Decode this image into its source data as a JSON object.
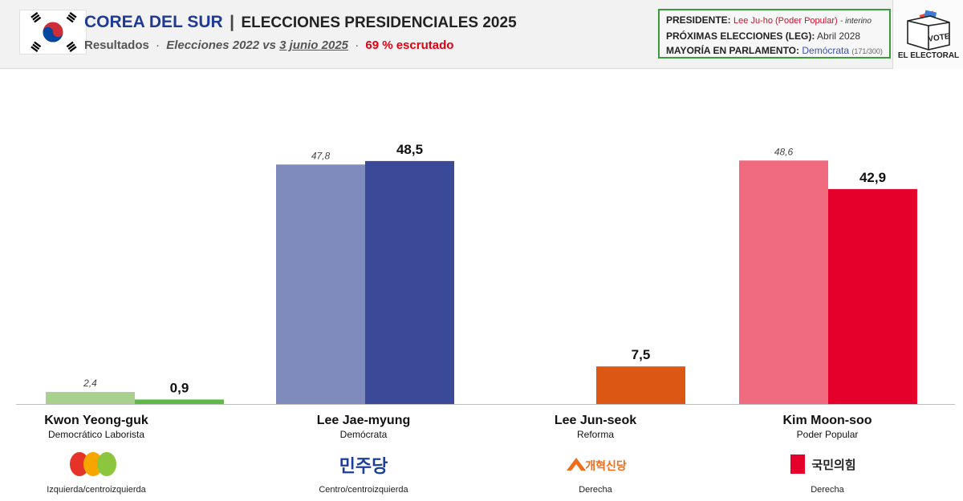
{
  "header": {
    "country": "COREA DEL SUR",
    "separator": "|",
    "election": "ELECCIONES PRESIDENCIALES 2025",
    "sub_results": "Resultados",
    "sub_dot": "·",
    "sub_compare_prefix": "Elecciones 2022 vs",
    "sub_compare_date": "3 junio 2025",
    "sub_count": "69 % escrutado"
  },
  "infobox": {
    "president_key": "PRESIDENTE:",
    "president_value": "Lee Ju-ho (Poder Popular)",
    "president_note": "- interino",
    "next_key": "PRÓXIMAS ELECCIONES (LEG):",
    "next_value": "Abril 2028",
    "majority_key": "MAYORÍA EN PARLAMENTO:",
    "majority_value": "Demócrata",
    "majority_seats": "(171/300)"
  },
  "brand": {
    "label": "EL ELECTORAL",
    "box_text": "VOTE",
    "icon": "ballot-box-icon"
  },
  "colors": {
    "country_title": "#1f3a93",
    "count": "#e00012",
    "infobox_border": "#3c9a3c"
  },
  "candidates": [
    {
      "name": "Kwon Yeong-guk",
      "party": "Democrático Laborista",
      "ideology": "Izquierda/centroizquierda",
      "logo": "labor-party-logo",
      "logo_text": ""
    },
    {
      "name": "Lee Jae-myung",
      "party": "Demócrata",
      "ideology": "Centro/centroizquierda",
      "logo": "democratic-party-logo",
      "logo_text": "민주당"
    },
    {
      "name": "Lee Jun-seok",
      "party": "Reforma",
      "ideology": "Derecha",
      "logo": "reform-party-logo",
      "logo_text": "개혁신당"
    },
    {
      "name": "Kim Moon-soo",
      "party": "Poder Popular",
      "ideology": "Derecha",
      "logo": "people-power-party-logo",
      "logo_text": "국민의힘"
    }
  ],
  "chart_data": {
    "type": "bar",
    "categories": [
      "Kwon Yeong-guk",
      "Lee Jae-myung",
      "Lee Jun-seok",
      "Kim Moon-soo"
    ],
    "series": [
      {
        "values": [
          2.4,
          47.8,
          null,
          48.6
        ],
        "labels": [
          "2,4",
          "47,8",
          "",
          "48,6"
        ],
        "colors": [
          "#a9d18e",
          "#7f8bbd",
          "#f4a27a",
          "#f06a80"
        ]
      },
      {
        "values": [
          0.9,
          48.5,
          7.5,
          42.9
        ],
        "labels": [
          "0,9",
          "48,5",
          "7,5",
          "42,9"
        ],
        "colors": [
          "#5eb84a",
          "#3b4a98",
          "#dd5714",
          "#e4002b"
        ]
      }
    ],
    "ylim": [
      0,
      50
    ],
    "grid": false,
    "legend": "none"
  }
}
